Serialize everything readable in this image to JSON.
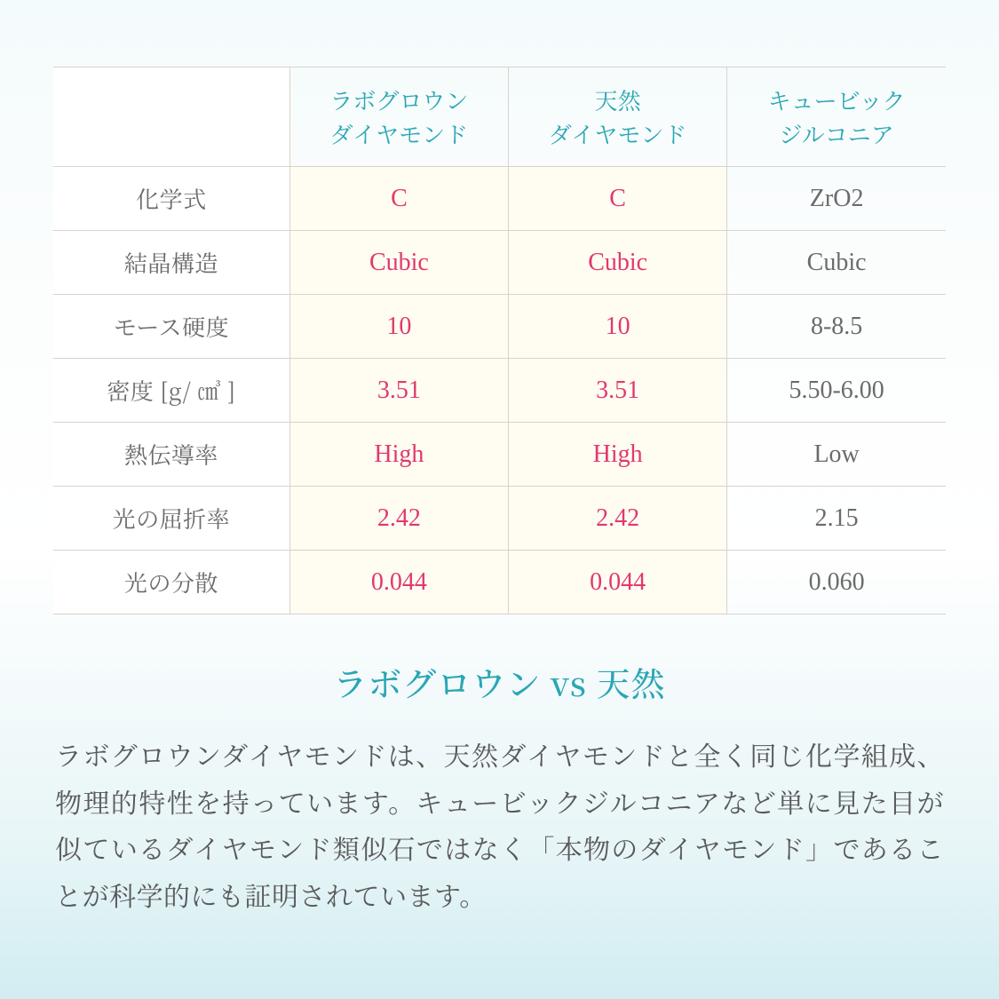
{
  "colors": {
    "border": "#d8d3cd",
    "header_text": "#2aa6b4",
    "row_label_text": "#6b6b6b",
    "highlight_bg": "#fffcf2",
    "highlight_text": "#e0396e",
    "plain_text": "#6b6b6b",
    "title_text": "#2aa6b4",
    "body_text": "#595959",
    "header_fontsize": "26px"
  },
  "table": {
    "columns": [
      {
        "line1": "",
        "line2": ""
      },
      {
        "line1": "ラボグロウン",
        "line2": "ダイヤモンド"
      },
      {
        "line1": "天然",
        "line2": "ダイヤモンド"
      },
      {
        "line1": "キュービック",
        "line2": "ジルコニア"
      }
    ],
    "col_widths": [
      "26.5%",
      "24.5%",
      "24.5%",
      "24.5%"
    ],
    "rows": [
      {
        "label": "化学式",
        "c1": "C",
        "c2": "C",
        "c3": "ZrO2"
      },
      {
        "label": "結晶構造",
        "c1": "Cubic",
        "c2": "Cubic",
        "c3": "Cubic"
      },
      {
        "label": "モース硬度",
        "c1": "10",
        "c2": "10",
        "c3": "8-8.5"
      },
      {
        "label": "密度 [g/ ㎤ ]",
        "c1": "3.51",
        "c2": "3.51",
        "c3": "5.50-6.00"
      },
      {
        "label": "熱伝導率",
        "c1": "High",
        "c2": "High",
        "c3": "Low"
      },
      {
        "label": "光の屈折率",
        "c1": "2.42",
        "c2": "2.42",
        "c3": "2.15"
      },
      {
        "label": "光の分散",
        "c1": "0.044",
        "c2": "0.044",
        "c3": "0.060"
      }
    ]
  },
  "section_title": "ラボグロウン vs 天然",
  "body_text": "ラボグロウンダイヤモンドは、天然ダイヤモンドと全く同じ化学組成、物理的特性を持っています。キュービックジルコニアなど単に見た目が似ているダイヤモンド類似石ではなく「本物のダイヤモンド」であることが科学的にも証明されています。"
}
